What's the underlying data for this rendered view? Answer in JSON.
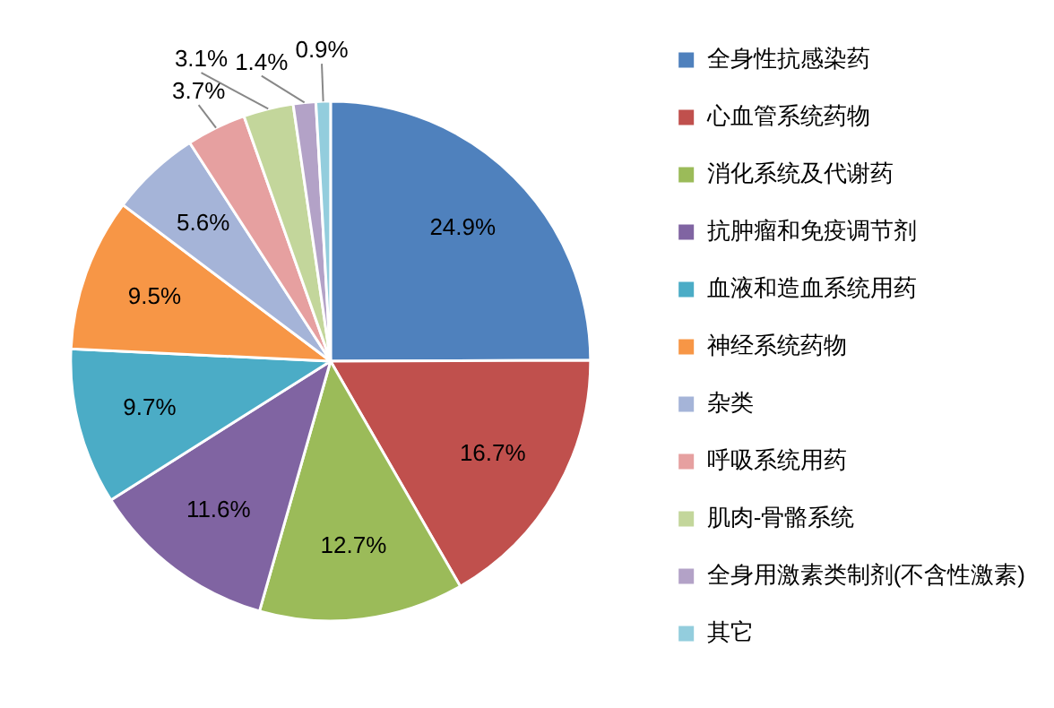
{
  "chart_data": {
    "type": "pie",
    "categories": [
      "全身性抗感染药",
      "心血管系统药物",
      "消化系统及代谢药",
      "抗肿瘤和免疫调节剂",
      "血液和造血系统用药",
      "神经系统药物",
      "杂类",
      "呼吸系统用药",
      "肌肉-骨骼系统",
      "全身用激素类制剂(不含性激素)",
      "其它"
    ],
    "values": [
      24.9,
      16.7,
      12.7,
      11.6,
      9.7,
      9.5,
      5.6,
      3.7,
      3.1,
      1.4,
      0.9
    ],
    "value_labels": [
      "24.9%",
      "16.7%",
      "12.7%",
      "11.6%",
      "9.7%",
      "9.5%",
      "5.6%",
      "3.7%",
      "3.1%",
      "1.4%",
      "0.9%"
    ],
    "colors": [
      "#4f81bd",
      "#c0504d",
      "#9bbb59",
      "#8064a2",
      "#4bacc6",
      "#f79646",
      "#a5b4d8",
      "#e6a0a0",
      "#c3d69b",
      "#b3a2c7",
      "#93cddd"
    ],
    "legend": "right"
  }
}
